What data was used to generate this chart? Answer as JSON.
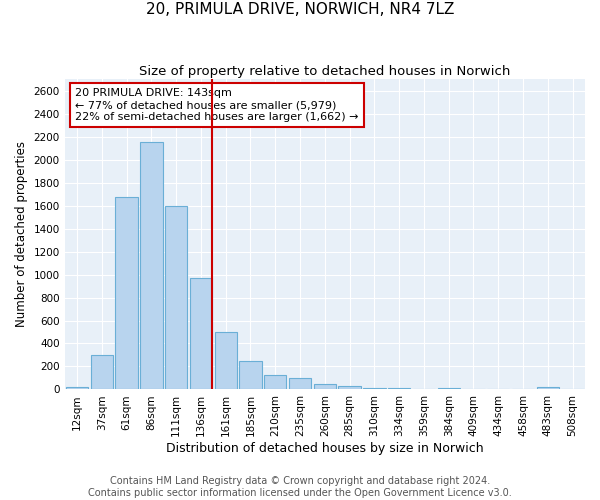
{
  "title": "20, PRIMULA DRIVE, NORWICH, NR4 7LZ",
  "subtitle": "Size of property relative to detached houses in Norwich",
  "xlabel": "Distribution of detached houses by size in Norwich",
  "ylabel": "Number of detached properties",
  "categories": [
    "12sqm",
    "37sqm",
    "61sqm",
    "86sqm",
    "111sqm",
    "136sqm",
    "161sqm",
    "185sqm",
    "210sqm",
    "235sqm",
    "260sqm",
    "285sqm",
    "310sqm",
    "334sqm",
    "359sqm",
    "384sqm",
    "409sqm",
    "434sqm",
    "458sqm",
    "483sqm",
    "508sqm"
  ],
  "values": [
    25,
    300,
    1675,
    2150,
    1600,
    970,
    500,
    250,
    125,
    100,
    50,
    30,
    15,
    15,
    5,
    10,
    5,
    5,
    5,
    25,
    5
  ],
  "bar_color": "#b8d4ee",
  "bar_edge_color": "#6aafd6",
  "vline_x_idx": 5,
  "vline_color": "#cc0000",
  "annotation_text": "20 PRIMULA DRIVE: 143sqm\n← 77% of detached houses are smaller (5,979)\n22% of semi-detached houses are larger (1,662) →",
  "annotation_box_color": "#ffffff",
  "annotation_box_edge_color": "#cc0000",
  "ylim": [
    0,
    2700
  ],
  "yticks": [
    0,
    200,
    400,
    600,
    800,
    1000,
    1200,
    1400,
    1600,
    1800,
    2000,
    2200,
    2400,
    2600
  ],
  "footer_line1": "Contains HM Land Registry data © Crown copyright and database right 2024.",
  "footer_line2": "Contains public sector information licensed under the Open Government Licence v3.0.",
  "bg_color": "#e8f0f8",
  "grid_color": "#ffffff",
  "title_fontsize": 11,
  "subtitle_fontsize": 9.5,
  "xlabel_fontsize": 9,
  "ylabel_fontsize": 8.5,
  "tick_fontsize": 7.5,
  "footer_fontsize": 7
}
